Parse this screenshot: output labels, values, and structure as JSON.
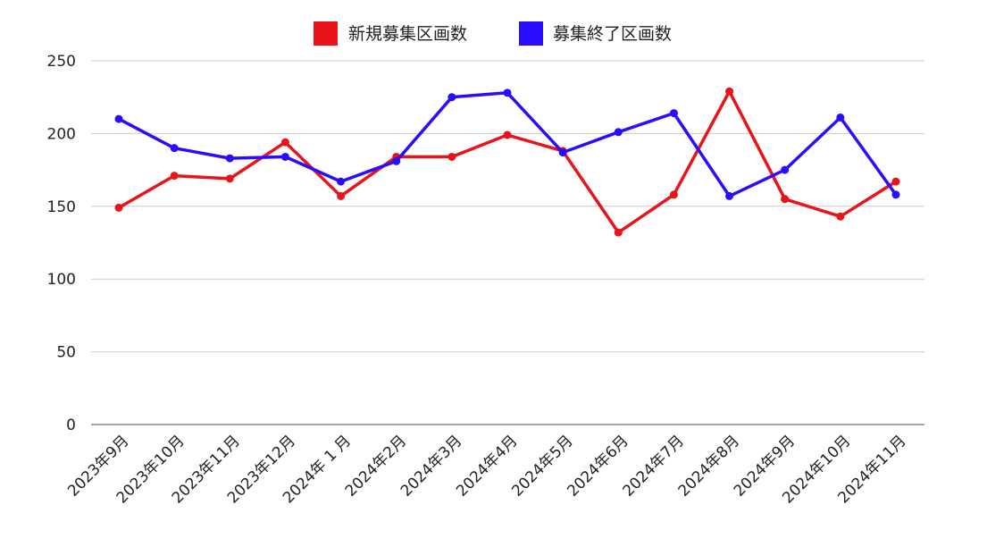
{
  "chart_data": {
    "type": "line",
    "categories": [
      "2023年9月",
      "2023年10月",
      "2023年11月",
      "2023年12月",
      "2024年 1 月",
      "2024年2月",
      "2024年3月",
      "2024年4月",
      "2024年5月",
      "2024年6月",
      "2024年7月",
      "2024年8月",
      "2024年9月",
      "2024年10月",
      "2024年11月"
    ],
    "series": [
      {
        "name": "新規募集区画数",
        "color": "#e8141a",
        "values": [
          149,
          171,
          169,
          194,
          157,
          184,
          184,
          199,
          188,
          132,
          158,
          229,
          155,
          143,
          167
        ]
      },
      {
        "name": "募集終了区画数",
        "color": "#2a0dfa",
        "values": [
          210,
          190,
          183,
          184,
          167,
          181,
          225,
          228,
          187,
          201,
          214,
          157,
          175,
          211,
          158
        ]
      }
    ],
    "ylim": [
      0,
      250
    ],
    "yticks": [
      0,
      50,
      100,
      150,
      200,
      250
    ],
    "grid": true,
    "legend_position": "top-center",
    "title": "",
    "xlabel": "",
    "ylabel": ""
  }
}
